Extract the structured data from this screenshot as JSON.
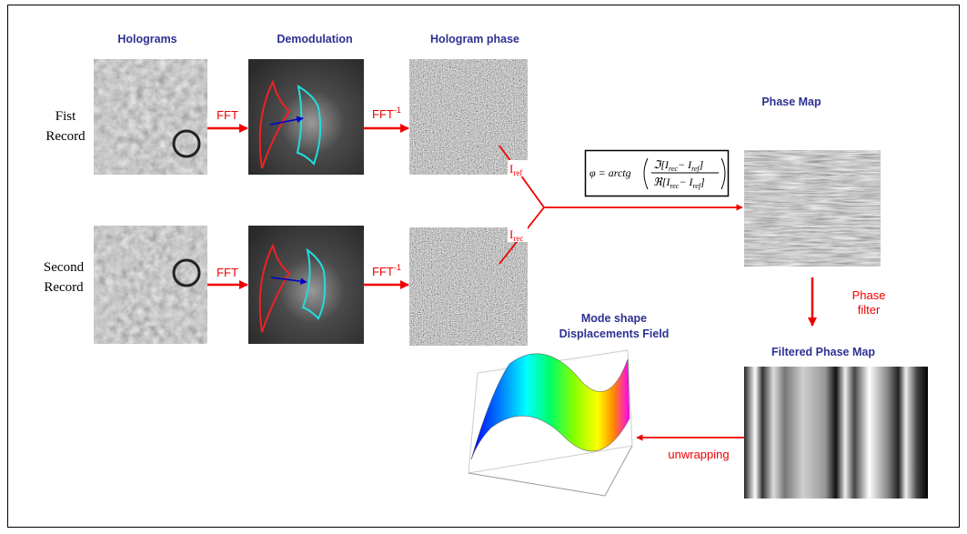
{
  "columns": {
    "holograms": "Holograms",
    "demodulation": "Demodulation",
    "hologram_phase": "Hologram phase"
  },
  "rows": [
    {
      "label_lines": [
        "Fist",
        "Record"
      ]
    },
    {
      "label_lines": [
        "Second",
        "Record"
      ]
    }
  ],
  "fft": "FFT",
  "ifft": {
    "text": "FFT",
    "sup": "-1"
  },
  "i_ref": {
    "text": "I",
    "sub": "ref"
  },
  "i_rec": {
    "text": "I",
    "sub": "rec"
  },
  "formula": {
    "lhs": "φ = arctg",
    "numerator": [
      "ℑ[I",
      "rec",
      "− I",
      "ref",
      "]"
    ],
    "denominator": [
      "ℜ[I",
      "rec",
      "− I",
      "ref",
      "]"
    ]
  },
  "phase_map": "Phase Map",
  "phase_filter": [
    "Phase",
    "filter"
  ],
  "filtered_phase_map": "Filtered Phase Map",
  "mode_shape": [
    "Mode shape",
    "Displacements Field"
  ],
  "unwrapping": "unwrapping"
}
